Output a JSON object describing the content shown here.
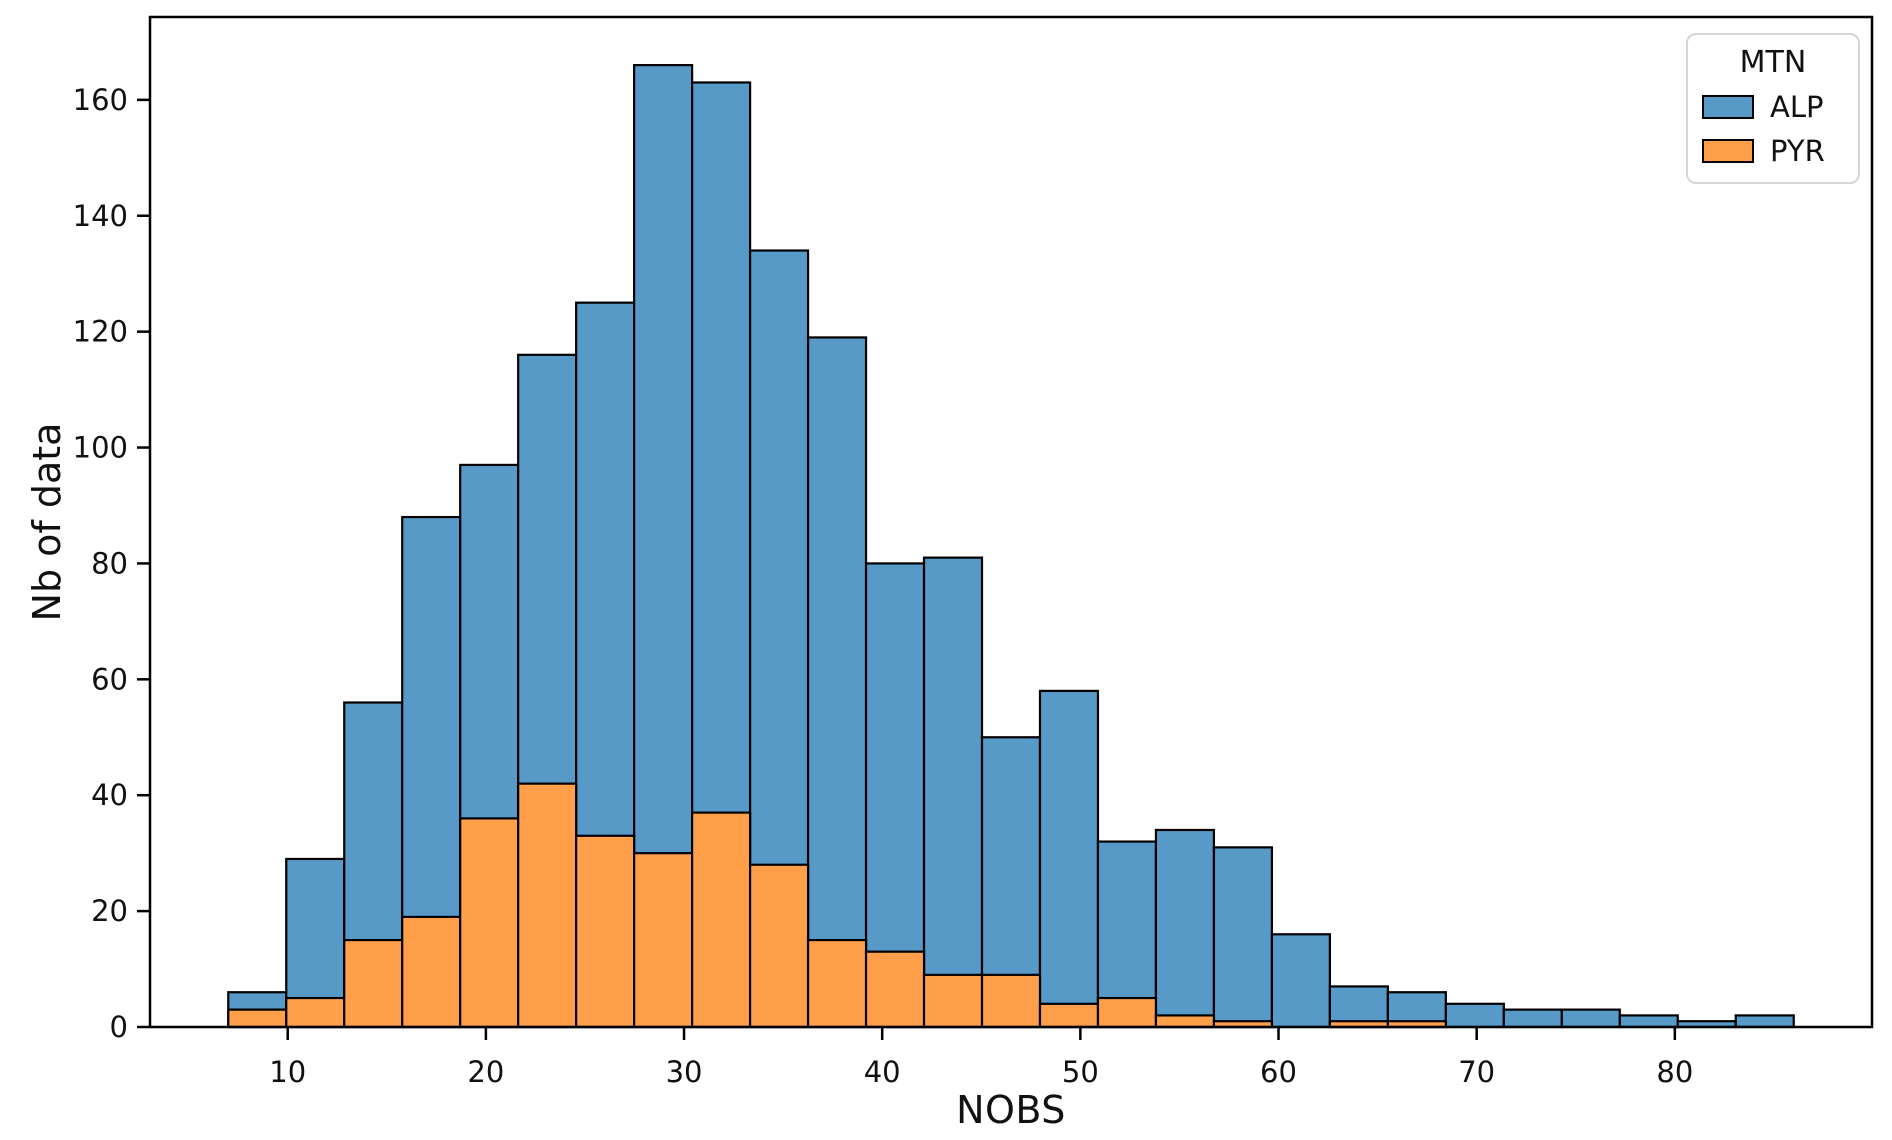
{
  "chart_data": {
    "type": "bar",
    "subtype": "histogram-overlaid",
    "title": "",
    "xlabel": "NOBS",
    "ylabel": "Nb of data",
    "bins": {
      "start": 7,
      "end": 86,
      "count": 27
    },
    "xlim": [
      3.05,
      89.95
    ],
    "ylim": [
      0,
      174.3
    ],
    "xticks": [
      10,
      20,
      30,
      40,
      50,
      60,
      70,
      80
    ],
    "yticks": [
      0,
      20,
      40,
      60,
      80,
      100,
      120,
      140,
      160
    ],
    "grid": false,
    "bar_edge_color": "#000000",
    "axis_color": "#000000",
    "text_color": "#111111",
    "legend": {
      "title": "MTN",
      "position": "upper right",
      "entries": [
        {
          "label": "ALP",
          "color": "#5799c7"
        },
        {
          "label": "PYR",
          "color": "#ff9f4a"
        }
      ]
    },
    "series": [
      {
        "name": "ALP",
        "color": "#5799c7",
        "values": [
          6,
          29,
          56,
          88,
          97,
          116,
          125,
          166,
          163,
          134,
          119,
          80,
          81,
          50,
          58,
          32,
          34,
          31,
          16,
          7,
          6,
          4,
          3,
          3,
          2,
          1,
          2
        ]
      },
      {
        "name": "PYR",
        "color": "#ff9f4a",
        "values": [
          3,
          5,
          15,
          19,
          36,
          42,
          33,
          30,
          37,
          28,
          15,
          13,
          9,
          9,
          4,
          5,
          2,
          1,
          0,
          1,
          1,
          0,
          0,
          0,
          0,
          0,
          0
        ]
      }
    ]
  }
}
